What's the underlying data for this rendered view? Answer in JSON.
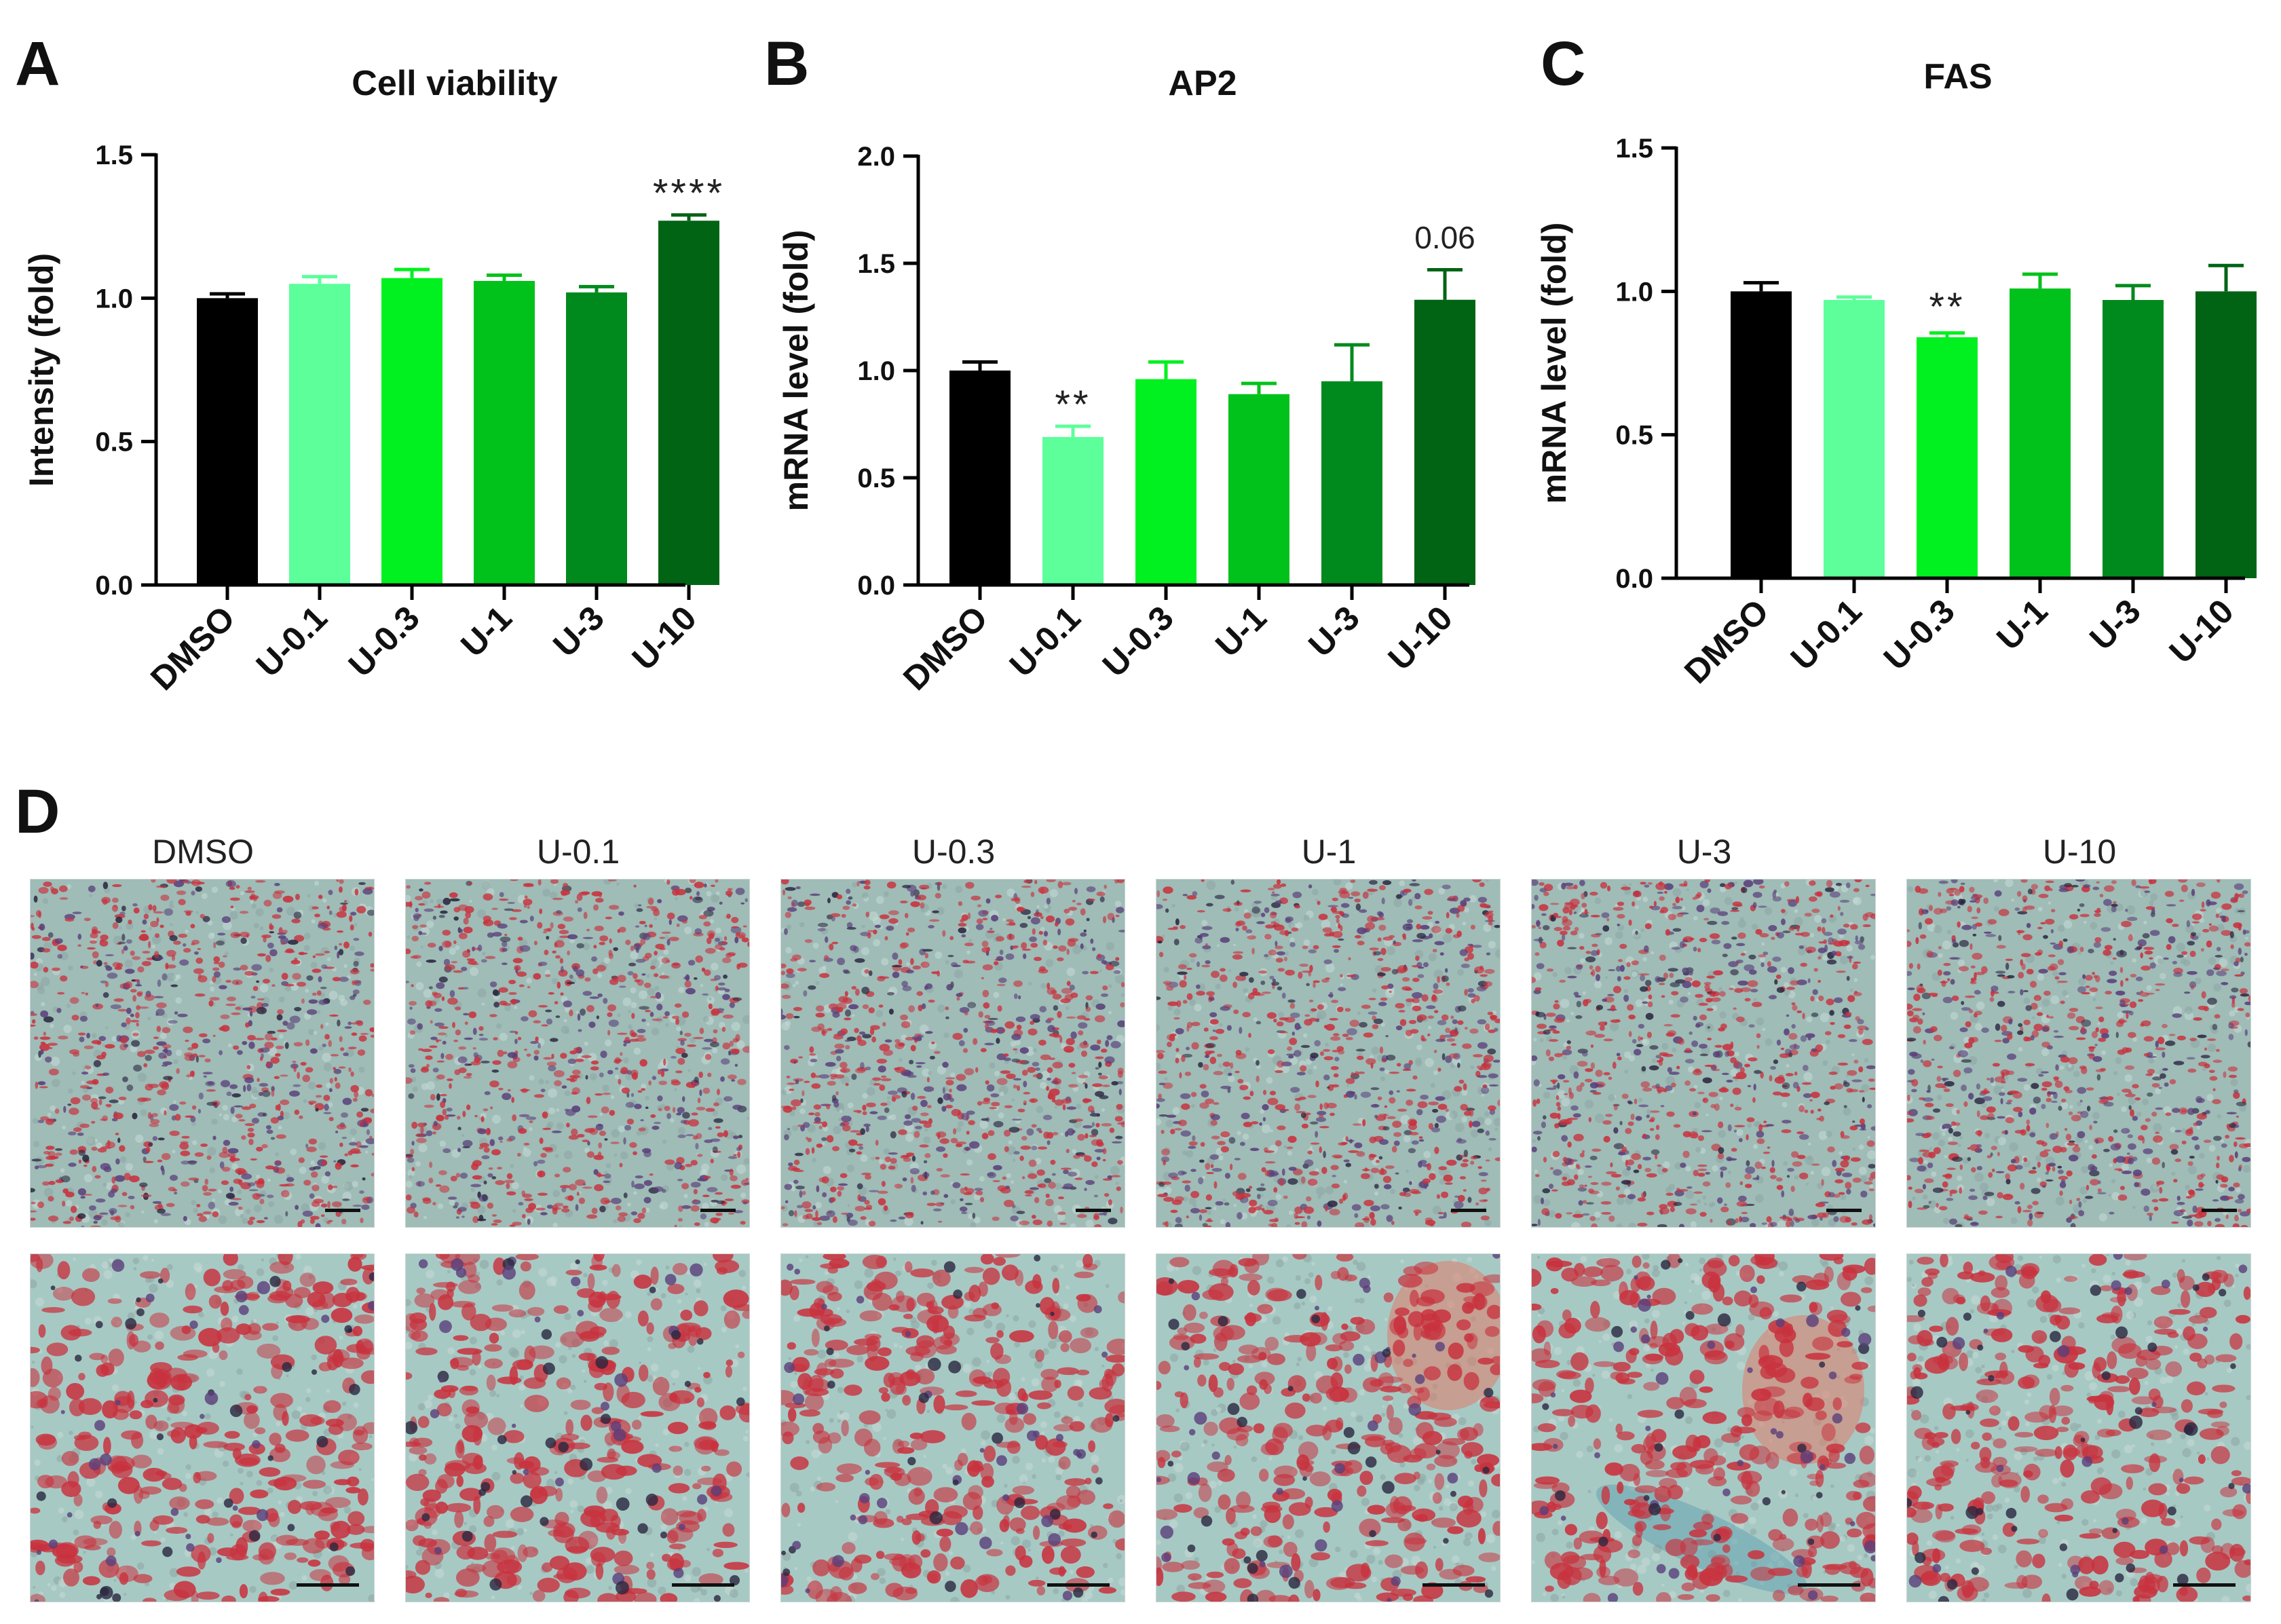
{
  "panels": [
    {
      "letter": "A"
    },
    {
      "letter": "B"
    },
    {
      "letter": "C"
    },
    {
      "letter": "D"
    }
  ],
  "chart_data": [
    {
      "type": "bar",
      "title": "Cell viability",
      "xlabel": "",
      "ylabel": "Intensity (fold)",
      "ylim": [
        0,
        1.5
      ],
      "yticks": [
        "0.0",
        "0.5",
        "1.0",
        "1.5"
      ],
      "categories": [
        "DMSO",
        "U-0.1",
        "U-0.3",
        "U-1",
        "U-3",
        "U-10"
      ],
      "values": [
        1.0,
        1.05,
        1.07,
        1.06,
        1.02,
        1.27
      ],
      "errors": [
        0.015,
        0.025,
        0.03,
        0.02,
        0.02,
        0.02
      ],
      "colors": [
        "#000000",
        "#5cff9a",
        "#00f020",
        "#00c21a",
        "#008a1e",
        "#006414"
      ],
      "annotations": [
        {
          "category": "U-10",
          "text": "****",
          "y": 1.38
        }
      ]
    },
    {
      "type": "bar",
      "title": "AP2",
      "xlabel": "",
      "ylabel": "mRNA level (fold)",
      "ylim": [
        0,
        2.0
      ],
      "yticks": [
        "0.0",
        "0.5",
        "1.0",
        "1.5",
        "2.0"
      ],
      "categories": [
        "DMSO",
        "U-0.1",
        "U-0.3",
        "U-1",
        "U-3",
        "U-10"
      ],
      "values": [
        1.0,
        0.69,
        0.96,
        0.89,
        0.95,
        1.33
      ],
      "errors": [
        0.04,
        0.05,
        0.08,
        0.05,
        0.17,
        0.14
      ],
      "colors": [
        "#000000",
        "#5cff9a",
        "#00f020",
        "#00c21a",
        "#008a1e",
        "#006414"
      ],
      "annotations": [
        {
          "category": "U-0.1",
          "text": "**",
          "y": 0.86
        },
        {
          "category": "U-10",
          "text": "0.06",
          "y": 1.62
        }
      ]
    },
    {
      "type": "bar",
      "title": "FAS",
      "xlabel": "",
      "ylabel": "mRNA level (fold)",
      "ylim": [
        0,
        1.5
      ],
      "yticks": [
        "0.0",
        "0.5",
        "1.0",
        "1.5"
      ],
      "categories": [
        "DMSO",
        "U-0.1",
        "U-0.3",
        "U-1",
        "U-3",
        "U-10"
      ],
      "values": [
        1.0,
        0.97,
        0.84,
        1.01,
        0.97,
        1.0
      ],
      "errors": [
        0.03,
        0.01,
        0.015,
        0.05,
        0.05,
        0.09
      ],
      "colors": [
        "#000000",
        "#5cff9a",
        "#00f020",
        "#00c21a",
        "#008a1e",
        "#006414"
      ],
      "annotations": [
        {
          "category": "U-0.3",
          "text": "**",
          "y": 0.96
        }
      ]
    }
  ],
  "micrographs": {
    "labels": [
      "DMSO",
      "U-0.1",
      "U-0.3",
      "U-1",
      "U-3",
      "U-10"
    ],
    "rows": [
      "low-magnification",
      "high-magnification"
    ]
  },
  "colors": {
    "micro_background": "#9fbcb7",
    "micro_background_hi": "#a7c9c4",
    "stain_red": "#c8323e",
    "stain_purple": "#5a3f7a",
    "stain_dark": "#2b2740"
  }
}
